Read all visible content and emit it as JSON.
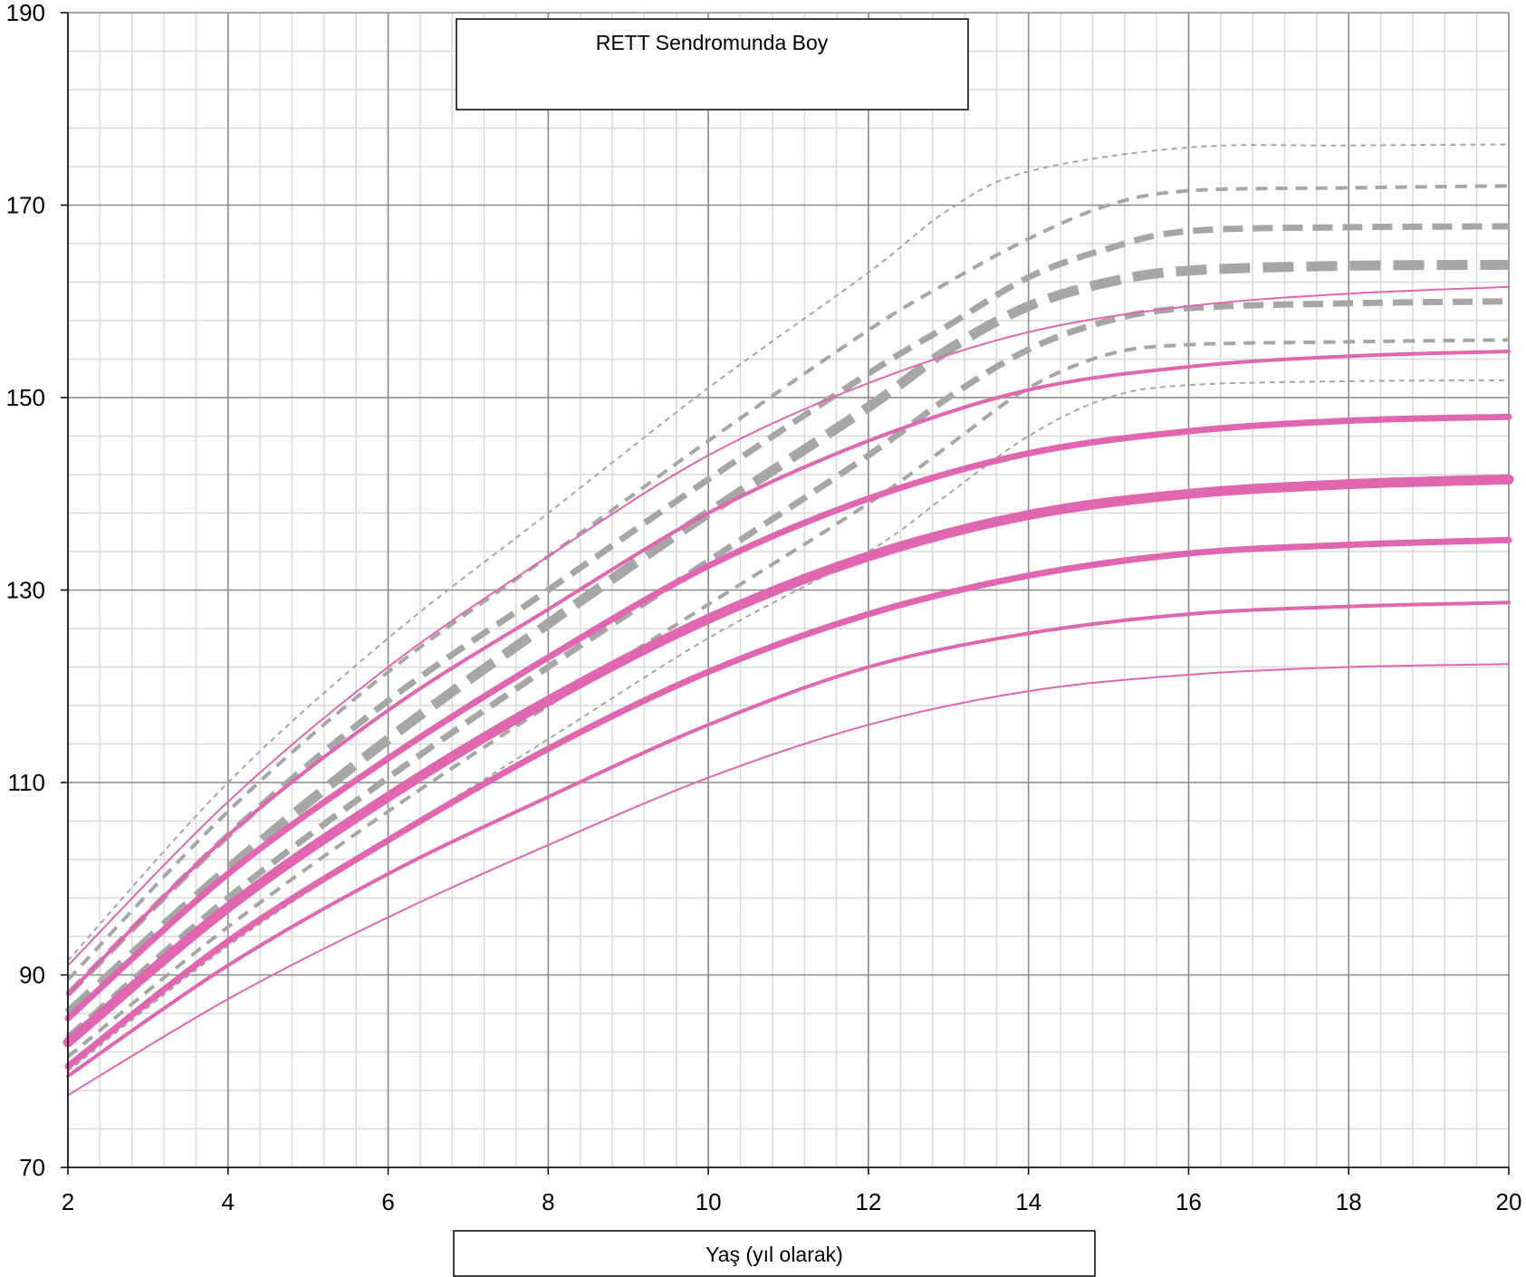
{
  "chart_data": {
    "type": "line",
    "title": "RETT Sendromunda Boy",
    "xlabel": "Yaş (yıl olarak)",
    "ylabel": "",
    "xlim": [
      2,
      20
    ],
    "ylim": [
      70,
      190
    ],
    "x_ticks": [
      "2",
      "4",
      "6",
      "8",
      "10",
      "12",
      "14",
      "16",
      "18",
      "20"
    ],
    "y_ticks": [
      "70",
      "90",
      "110",
      "130",
      "150",
      "170",
      "190"
    ],
    "grid": true,
    "colors": {
      "rett": "#E066B0",
      "reference": "#A6A6A6",
      "grid_major": "#8c8c8c",
      "grid_minor": "#d9d9d9"
    },
    "series": [
      {
        "group": "reference",
        "style": "dashed",
        "weight": 1,
        "points": [
          [
            2,
            91.5
          ],
          [
            4,
            110
          ],
          [
            6,
            125
          ],
          [
            8,
            138
          ],
          [
            10,
            151
          ],
          [
            12,
            163
          ],
          [
            13,
            169.5
          ],
          [
            14,
            173.5
          ],
          [
            16,
            176
          ],
          [
            18,
            176.2
          ],
          [
            20,
            176.3
          ]
        ]
      },
      {
        "group": "reference",
        "style": "dashed",
        "weight": 2,
        "points": [
          [
            2,
            89.5
          ],
          [
            4,
            107
          ],
          [
            6,
            121.5
          ],
          [
            8,
            133.5
          ],
          [
            10,
            145.5
          ],
          [
            12,
            157
          ],
          [
            13,
            162
          ],
          [
            14,
            166.5
          ],
          [
            15,
            170
          ],
          [
            16,
            171.5
          ],
          [
            18,
            171.8
          ],
          [
            20,
            172
          ]
        ]
      },
      {
        "group": "reference",
        "style": "dashed",
        "weight": 3,
        "points": [
          [
            2,
            88
          ],
          [
            4,
            104.5
          ],
          [
            6,
            118.5
          ],
          [
            8,
            130
          ],
          [
            10,
            141.5
          ],
          [
            12,
            152.5
          ],
          [
            13,
            157.5
          ],
          [
            14,
            162.5
          ],
          [
            15,
            165.5
          ],
          [
            16,
            167.3
          ],
          [
            18,
            167.7
          ],
          [
            20,
            167.8
          ]
        ]
      },
      {
        "group": "reference",
        "style": "dashed",
        "weight": 4,
        "points": [
          [
            2,
            86
          ],
          [
            4,
            101
          ],
          [
            6,
            114.5
          ],
          [
            8,
            126.5
          ],
          [
            10,
            138
          ],
          [
            12,
            149
          ],
          [
            13,
            155
          ],
          [
            14,
            159.5
          ],
          [
            15,
            162
          ],
          [
            16,
            163.2
          ],
          [
            18,
            163.7
          ],
          [
            20,
            163.8
          ]
        ]
      },
      {
        "group": "reference",
        "style": "dashed",
        "weight": 3,
        "points": [
          [
            2,
            83.5
          ],
          [
            4,
            98
          ],
          [
            6,
            110.5
          ],
          [
            8,
            122
          ],
          [
            10,
            133
          ],
          [
            12,
            144
          ],
          [
            13,
            150
          ],
          [
            14,
            155
          ],
          [
            15,
            158
          ],
          [
            16,
            159.3
          ],
          [
            18,
            159.8
          ],
          [
            20,
            160
          ]
        ]
      },
      {
        "group": "reference",
        "style": "dashed",
        "weight": 2,
        "points": [
          [
            2,
            81.5
          ],
          [
            4,
            95
          ],
          [
            6,
            107
          ],
          [
            8,
            118
          ],
          [
            10,
            128.5
          ],
          [
            12,
            139
          ],
          [
            13,
            145
          ],
          [
            14,
            151
          ],
          [
            15,
            154.5
          ],
          [
            16,
            155.5
          ],
          [
            18,
            155.8
          ],
          [
            20,
            156
          ]
        ]
      },
      {
        "group": "reference",
        "style": "dashed",
        "weight": 1,
        "points": [
          [
            2,
            80
          ],
          [
            4,
            93
          ],
          [
            6,
            104
          ],
          [
            8,
            114.5
          ],
          [
            10,
            125
          ],
          [
            12,
            134
          ],
          [
            13,
            140
          ],
          [
            14,
            146
          ],
          [
            15,
            150
          ],
          [
            16,
            151.3
          ],
          [
            18,
            151.7
          ],
          [
            20,
            151.8
          ]
        ]
      },
      {
        "group": "rett",
        "style": "solid",
        "weight": 1,
        "points": [
          [
            2,
            91
          ],
          [
            4,
            108
          ],
          [
            6,
            122
          ],
          [
            8,
            133.5
          ],
          [
            10,
            144
          ],
          [
            12,
            151.5
          ],
          [
            14,
            156.8
          ],
          [
            16,
            159.5
          ],
          [
            18,
            160.8
          ],
          [
            20,
            161.5
          ]
        ]
      },
      {
        "group": "rett",
        "style": "solid",
        "weight": 2,
        "points": [
          [
            2,
            88
          ],
          [
            4,
            104.5
          ],
          [
            6,
            117.5
          ],
          [
            8,
            128
          ],
          [
            10,
            138
          ],
          [
            12,
            145.5
          ],
          [
            14,
            150.8
          ],
          [
            16,
            153.2
          ],
          [
            18,
            154.3
          ],
          [
            20,
            154.8
          ]
        ]
      },
      {
        "group": "rett",
        "style": "solid",
        "weight": 3,
        "points": [
          [
            2,
            85.5
          ],
          [
            4,
            100.5
          ],
          [
            6,
            112.5
          ],
          [
            8,
            123
          ],
          [
            10,
            132.5
          ],
          [
            12,
            139.5
          ],
          [
            14,
            144.2
          ],
          [
            16,
            146.5
          ],
          [
            18,
            147.6
          ],
          [
            20,
            148
          ]
        ]
      },
      {
        "group": "rett",
        "style": "solid",
        "weight": 4,
        "points": [
          [
            2,
            83
          ],
          [
            4,
            97
          ],
          [
            6,
            108.5
          ],
          [
            8,
            118.5
          ],
          [
            10,
            127
          ],
          [
            12,
            133.5
          ],
          [
            14,
            137.8
          ],
          [
            16,
            140
          ],
          [
            18,
            141
          ],
          [
            20,
            141.5
          ]
        ]
      },
      {
        "group": "rett",
        "style": "solid",
        "weight": 3,
        "points": [
          [
            2,
            80.5
          ],
          [
            4,
            93.5
          ],
          [
            6,
            104
          ],
          [
            8,
            113.5
          ],
          [
            10,
            121.5
          ],
          [
            12,
            127.5
          ],
          [
            14,
            131.5
          ],
          [
            16,
            133.8
          ],
          [
            18,
            134.7
          ],
          [
            20,
            135.2
          ]
        ]
      },
      {
        "group": "rett",
        "style": "solid",
        "weight": 2,
        "points": [
          [
            2,
            79.5
          ],
          [
            4,
            91
          ],
          [
            6,
            100.5
          ],
          [
            8,
            108.5
          ],
          [
            10,
            116
          ],
          [
            12,
            122
          ],
          [
            14,
            125.5
          ],
          [
            16,
            127.5
          ],
          [
            18,
            128.3
          ],
          [
            20,
            128.7
          ]
        ]
      },
      {
        "group": "rett",
        "style": "solid",
        "weight": 1,
        "points": [
          [
            2,
            77.5
          ],
          [
            4,
            87.5
          ],
          [
            6,
            96
          ],
          [
            8,
            103.5
          ],
          [
            10,
            110.5
          ],
          [
            12,
            116
          ],
          [
            14,
            119.5
          ],
          [
            16,
            121.2
          ],
          [
            18,
            122
          ],
          [
            20,
            122.3
          ]
        ]
      }
    ]
  }
}
